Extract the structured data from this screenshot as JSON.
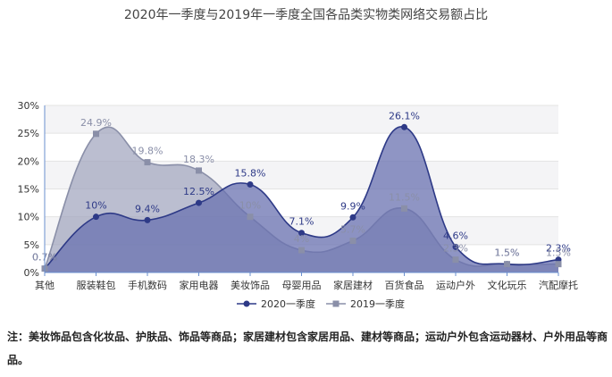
{
  "chart_data": {
    "type": "area",
    "title": "2020年一季度与2019年一季度全国各品类实物类网络交易额占比",
    "categories": [
      "其他",
      "服装鞋包",
      "手机数码",
      "家用电器",
      "美妆饰品",
      "母婴用品",
      "家居建材",
      "百货食品",
      "运动户外",
      "文化玩乐",
      "汽配摩托"
    ],
    "ylim": [
      0,
      30
    ],
    "yticks": [
      "0%",
      "5%",
      "10%",
      "15%",
      "20%",
      "25%",
      "30%"
    ],
    "grid": true,
    "legend_position": "bottom",
    "series": [
      {
        "name": "2020一季度",
        "color": "#2e3a87",
        "fill": "#6a72b0",
        "marker": "circle",
        "values": [
          0.7,
          10,
          9.4,
          12.5,
          15.8,
          7.1,
          9.9,
          26.1,
          4.6,
          1.5,
          2.3
        ],
        "labels": [
          "0.7%",
          "10%",
          "9.4%",
          "12.5%",
          "15.8%",
          "7.1%",
          "9.9%",
          "26.1%",
          "4.6%",
          "1.5%",
          "2.3%"
        ]
      },
      {
        "name": "2019一季度",
        "color": "#8a8fa8",
        "fill": "#9ea2bc",
        "marker": "square",
        "values": [
          0.7,
          24.9,
          19.8,
          18.3,
          10,
          4,
          5.7,
          11.5,
          2.3,
          1.5,
          1.5
        ],
        "labels": [
          "0.7%",
          "24.9%",
          "19.8%",
          "18.3%",
          "10%",
          "4%",
          "5.7%",
          "11.5%",
          "2.3%",
          "1.5%",
          "1.5%"
        ]
      }
    ]
  },
  "note": "注：美妆饰品包含化妆品、护肤品、饰品等商品；家居建材包含家居用品、建材等商品；运动户外包含运动器材、户外用品等商品。"
}
